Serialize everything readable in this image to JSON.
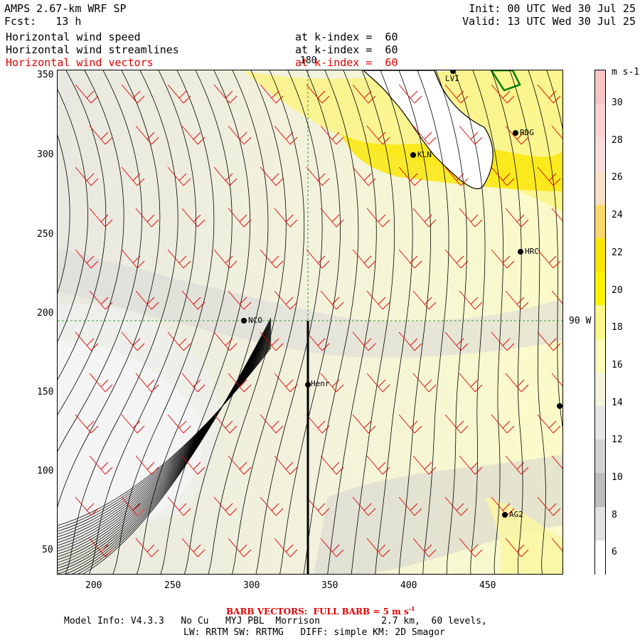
{
  "header": {
    "model": "AMPS 2.67-km WRF SP",
    "fcst": "Fcst:   13 h",
    "init": "Init: 00 UTC Wed 30 Jul 25",
    "valid": "Valid: 13 UTC Wed 30 Jul 25",
    "fields": [
      {
        "name": "Horizontal wind speed",
        "level": "at k-index =  60"
      },
      {
        "name": "Horizontal wind streamlines",
        "level": "at k-index =  60"
      },
      {
        "name": "Horizontal wind vectors",
        "level": "at k-index =  60"
      }
    ]
  },
  "map": {
    "x_ticks": [
      "200",
      "250",
      "300",
      "350",
      "400",
      "450"
    ],
    "y_ticks": [
      "350",
      "300",
      "250",
      "200",
      "150",
      "100",
      "50"
    ],
    "meridian_label": "180",
    "parallel_label": "90 W",
    "stations": [
      {
        "name": "NCO"
      },
      {
        "name": "Henr"
      },
      {
        "name": "KLN"
      },
      {
        "name": "RDG"
      },
      {
        "name": "HRC"
      },
      {
        "name": "AG2"
      },
      {
        "name": "LVI"
      }
    ]
  },
  "colorbar": {
    "unit": "m s-1",
    "labels": [
      "30",
      "28",
      "26",
      "24",
      "22",
      "20",
      "18",
      "16",
      "14",
      "12",
      "10",
      "8",
      "6"
    ],
    "colors": [
      "#f9c6c6",
      "#fad2d2",
      "#fadcdc",
      "#f9e0c8",
      "#fbd86a",
      "#fae600",
      "#fbf200",
      "#fcf88a",
      "#fdfbb8",
      "#f4f4dc",
      "#e6e6e6",
      "#d2d2d2",
      "#bebebe",
      "#e2e2e2",
      "#ffffff"
    ]
  },
  "footer": {
    "barb": "BARB VECTORS:  FULL BARB = 5 m s",
    "barb_exp": "-1",
    "model_info": "Model Info: V4.3.3   No Cu   MYJ PBL  Morrison           2.7 km,  60 levels,",
    "physics": "LW: RRTM SW: RRTMG   DIFF: simple KM: 2D Smagor"
  }
}
